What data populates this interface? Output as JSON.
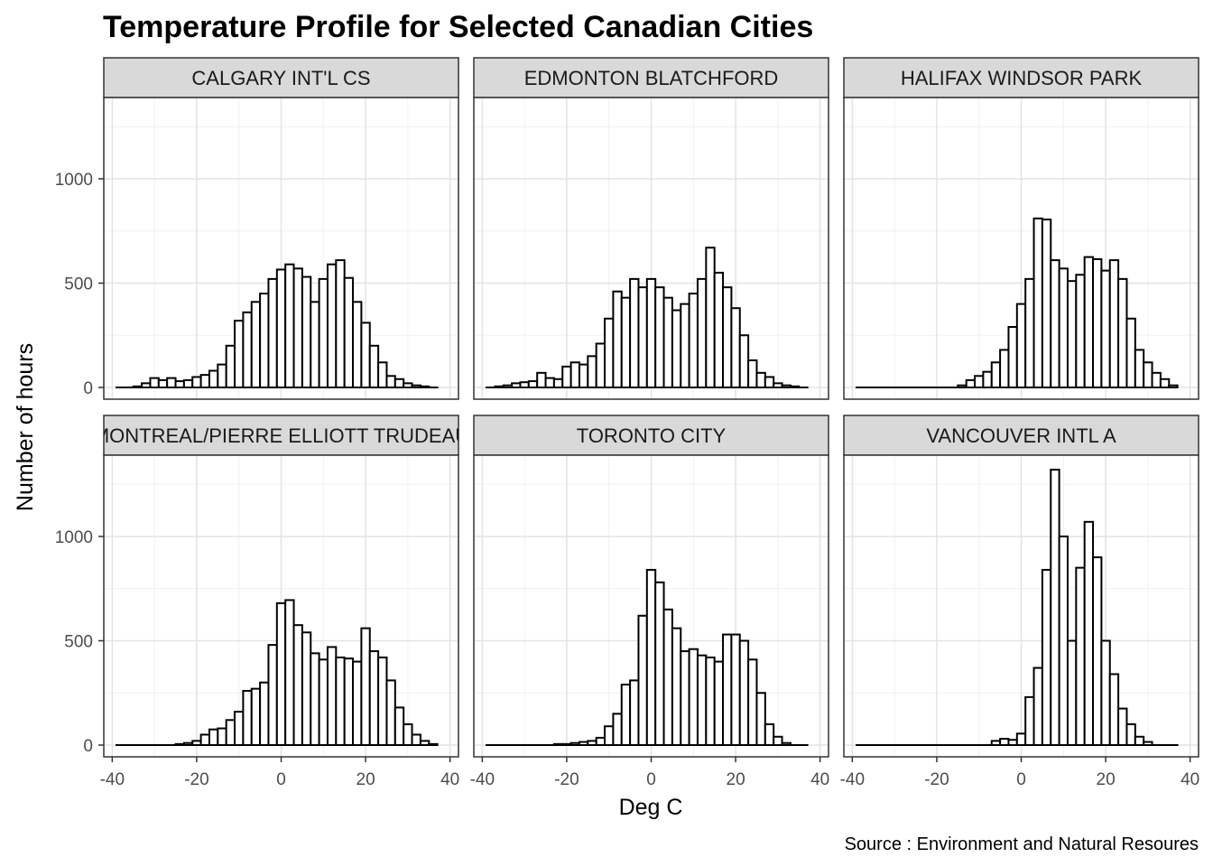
{
  "chart_data": {
    "type": "bar",
    "title": "Temperature Profile for Selected Canadian Cities",
    "xlabel": "Deg C",
    "ylabel": "Number of hours",
    "caption": "Source : Environment and Natural Resoures",
    "xlim": [
      -40,
      40
    ],
    "ylim": [
      0,
      1400
    ],
    "x_ticks": [
      -40,
      -20,
      0,
      20,
      40
    ],
    "x_tick_labels": [
      "-40",
      "-20",
      "0",
      "20",
      "40"
    ],
    "y_ticks": [
      0,
      500,
      1000
    ],
    "y_tick_labels": [
      "0",
      "500",
      "1000"
    ],
    "grid": true,
    "legend": "none",
    "bin_width": 2,
    "bin_centers": [
      -38,
      -36,
      -34,
      -32,
      -30,
      -28,
      -26,
      -24,
      -22,
      -20,
      -18,
      -16,
      -14,
      -12,
      -10,
      -8,
      -6,
      -4,
      -2,
      0,
      2,
      4,
      6,
      8,
      10,
      12,
      14,
      16,
      18,
      20,
      22,
      24,
      26,
      28,
      30,
      32,
      34,
      36
    ],
    "facets": [
      {
        "label": "CALGARY INT'L CS",
        "values": [
          0,
          0,
          5,
          20,
          45,
          35,
          45,
          30,
          35,
          50,
          60,
          80,
          110,
          200,
          320,
          360,
          410,
          450,
          520,
          565,
          590,
          570,
          530,
          410,
          520,
          590,
          610,
          525,
          410,
          310,
          200,
          120,
          55,
          40,
          20,
          10,
          5,
          0
        ]
      },
      {
        "label": "EDMONTON BLATCHFORD",
        "values": [
          0,
          5,
          10,
          20,
          25,
          30,
          70,
          45,
          40,
          100,
          120,
          110,
          150,
          210,
          330,
          460,
          430,
          520,
          480,
          520,
          480,
          430,
          370,
          400,
          450,
          520,
          670,
          550,
          480,
          380,
          250,
          130,
          70,
          50,
          20,
          10,
          5,
          0
        ]
      },
      {
        "label": "HALIFAX WINDSOR PARK",
        "values": [
          0,
          0,
          0,
          0,
          0,
          0,
          0,
          0,
          0,
          0,
          0,
          0,
          10,
          35,
          55,
          75,
          120,
          180,
          290,
          400,
          520,
          810,
          805,
          610,
          570,
          510,
          540,
          625,
          615,
          560,
          610,
          520,
          330,
          180,
          120,
          70,
          40,
          10
        ]
      },
      {
        "label": "MONTREAL/PIERRE ELLIOTT TRUDEAU",
        "values": [
          0,
          0,
          0,
          0,
          0,
          0,
          0,
          5,
          10,
          20,
          50,
          75,
          80,
          120,
          160,
          260,
          270,
          300,
          480,
          680,
          695,
          575,
          540,
          440,
          410,
          470,
          420,
          415,
          400,
          560,
          450,
          420,
          310,
          180,
          100,
          50,
          20,
          5
        ]
      },
      {
        "label": "TORONTO CITY",
        "values": [
          0,
          0,
          0,
          0,
          0,
          0,
          0,
          0,
          5,
          5,
          10,
          15,
          20,
          35,
          90,
          150,
          290,
          310,
          620,
          840,
          780,
          650,
          560,
          450,
          460,
          430,
          420,
          400,
          530,
          530,
          500,
          410,
          250,
          100,
          40,
          10,
          0,
          0
        ]
      },
      {
        "label": "VANCOUVER INTL A",
        "values": [
          0,
          0,
          0,
          0,
          0,
          0,
          0,
          0,
          0,
          0,
          0,
          0,
          0,
          0,
          0,
          0,
          20,
          30,
          25,
          55,
          230,
          370,
          840,
          1320,
          1000,
          500,
          850,
          1070,
          900,
          500,
          340,
          175,
          100,
          40,
          15,
          0,
          0,
          0
        ]
      }
    ]
  }
}
